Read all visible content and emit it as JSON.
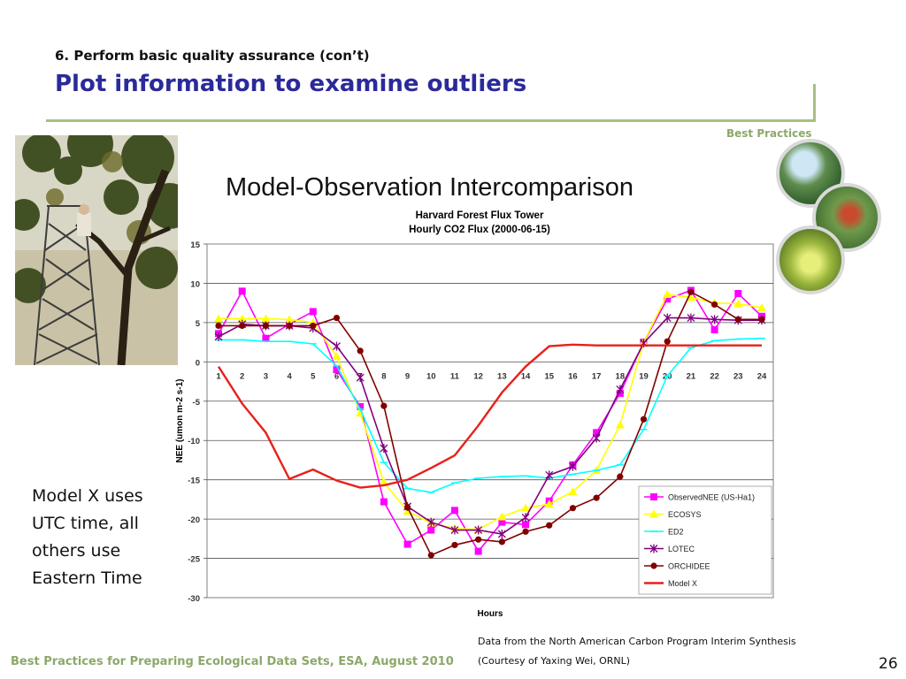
{
  "slide": {
    "subtitle": "6. Perform basic quality assurance (con’t)",
    "title": "Plot information to examine outliers",
    "best_practices_label": "Best Practices",
    "section_title": "Model-Observation Intercomparison",
    "note": "Model X uses UTC time, all others use Eastern Time",
    "credit_line1": "Data from the North American Carbon Program Interim Synthesis",
    "credit_line2": "(Courtesy of Yaxing Wei, ORNL)",
    "footer": "Best Practices for Preparing Ecological Data Sets, ESA, August 2010",
    "page_number": "26"
  },
  "colors": {
    "title": "#2b2a9b",
    "accent_green": "#a8bf7f",
    "footer_green": "#8ca86a"
  },
  "chart_data": {
    "type": "line",
    "title": "Harvard Forest Flux Tower",
    "subtitle": "Hourly CO2 Flux (2000-06-15)",
    "xlabel": "Hours",
    "ylabel": "NEE (umon m-2 s-1)",
    "ylim": [
      -30,
      15
    ],
    "yticks": [
      15,
      10,
      5,
      0,
      -5,
      -10,
      -15,
      -20,
      -25,
      -30
    ],
    "x": [
      1,
      2,
      3,
      4,
      5,
      6,
      7,
      8,
      9,
      10,
      11,
      12,
      13,
      14,
      15,
      16,
      17,
      18,
      19,
      20,
      21,
      22,
      23,
      24
    ],
    "grid": "horizontal",
    "legend_position": "bottom-right",
    "series": [
      {
        "name": "ObservedNEE (US-Ha1)",
        "color": "#ff00ff",
        "marker": "square",
        "values": [
          3.6,
          9.0,
          3.0,
          4.8,
          6.4,
          -1.0,
          -5.7,
          -17.8,
          -23.2,
          -21.4,
          -18.9,
          -24.1,
          -20.4,
          -20.7,
          -17.7,
          -13.1,
          -9.0,
          -4.0,
          2.5,
          8.0,
          9.1,
          4.1,
          8.7,
          5.8
        ]
      },
      {
        "name": "ECOSYS",
        "color": "#ffff00",
        "marker": "triangle",
        "values": [
          5.5,
          5.5,
          5.5,
          5.4,
          5.0,
          0.7,
          -6.5,
          -15.3,
          -19.0,
          -20.5,
          -21.2,
          -21.3,
          -19.7,
          -18.6,
          -18.1,
          -16.5,
          -13.8,
          -8.0,
          2.5,
          8.6,
          8.2,
          7.5,
          7.4,
          6.9
        ]
      },
      {
        "name": "ED2",
        "color": "#00ffff",
        "marker": "dash",
        "values": [
          2.8,
          2.8,
          2.6,
          2.6,
          2.3,
          -0.5,
          -6.0,
          -12.8,
          -16.1,
          -16.6,
          -15.4,
          -14.8,
          -14.6,
          -14.5,
          -14.8,
          -14.3,
          -13.8,
          -13.1,
          -8.6,
          -1.8,
          1.8,
          2.7,
          2.9,
          3.0
        ]
      },
      {
        "name": "LOTEC",
        "color": "#800080",
        "marker": "star",
        "values": [
          3.2,
          4.8,
          4.6,
          4.6,
          4.3,
          2.0,
          -2.0,
          -11.0,
          -18.4,
          -20.4,
          -21.4,
          -21.4,
          -21.9,
          -19.8,
          -14.4,
          -13.3,
          -9.7,
          -3.5,
          2.4,
          5.6,
          5.6,
          5.4,
          5.3,
          5.3
        ]
      },
      {
        "name": "ORCHIDEE",
        "color": "#800000",
        "marker": "circle",
        "values": [
          4.6,
          4.6,
          4.6,
          4.6,
          4.6,
          5.6,
          1.4,
          -5.6,
          -18.5,
          -24.6,
          -23.3,
          -22.6,
          -22.9,
          -21.6,
          -20.8,
          -18.6,
          -17.3,
          -14.6,
          -7.3,
          2.6,
          8.9,
          7.3,
          5.4,
          5.4
        ]
      },
      {
        "name": "Model X",
        "color": "#e8201a",
        "marker": "none",
        "values": [
          -0.6,
          -5.3,
          -9.0,
          -14.9,
          -13.7,
          -15.1,
          -16.0,
          -15.7,
          -15.0,
          -13.5,
          -11.9,
          -8.1,
          -3.9,
          -0.6,
          2.0,
          2.2,
          2.1,
          2.1,
          2.1,
          2.1,
          2.1,
          2.1,
          2.1,
          2.1
        ]
      }
    ]
  }
}
